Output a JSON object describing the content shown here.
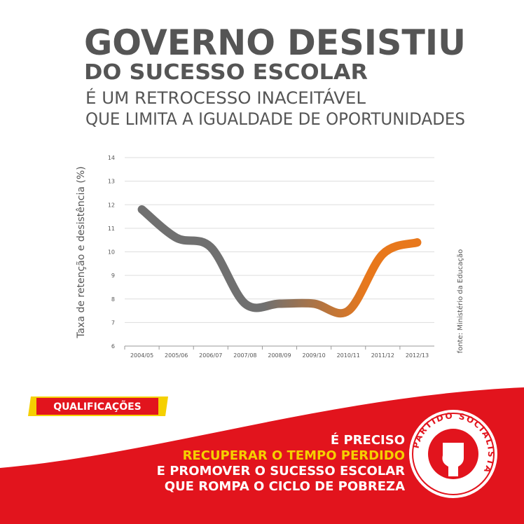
{
  "header": {
    "title": "GOVERNO DESISTIU",
    "title_line2": "DO SUCESSO ESCOLAR",
    "subtitle_line1": "É UM RETROCESSO INACEITÁVEL",
    "subtitle_line2": "QUE LIMITA A IGUALDADE DE OPORTUNIDADES"
  },
  "chart_data": {
    "type": "line",
    "y_label": "Taxa de retenção e desistência (%)",
    "source": "fonte: Ministério da Educação",
    "categories": [
      "2004/05",
      "2005/06",
      "2006/07",
      "2007/08",
      "2008/09",
      "2009/10",
      "2010/11",
      "2011/12",
      "2012/13"
    ],
    "values": [
      11.8,
      10.6,
      10.2,
      7.8,
      7.8,
      7.8,
      7.5,
      9.9,
      10.4
    ],
    "colors": [
      "#707070",
      "#e8781c"
    ],
    "ylim": [
      6,
      14
    ],
    "yticks": [
      6,
      7,
      8,
      9,
      10,
      11,
      12,
      13,
      14
    ],
    "grid": true
  },
  "footer": {
    "badge": "QUALIFICAÇÕES",
    "line1": "É PRECISO",
    "line2": "RECUPERAR O TEMPO PERDIDO",
    "line3": "E PROMOVER O SUCESSO ESCOLAR",
    "line4": "QUE ROMPA O CICLO DE POBREZA",
    "logo_text": "PARTIDO SOCIALISTA"
  }
}
